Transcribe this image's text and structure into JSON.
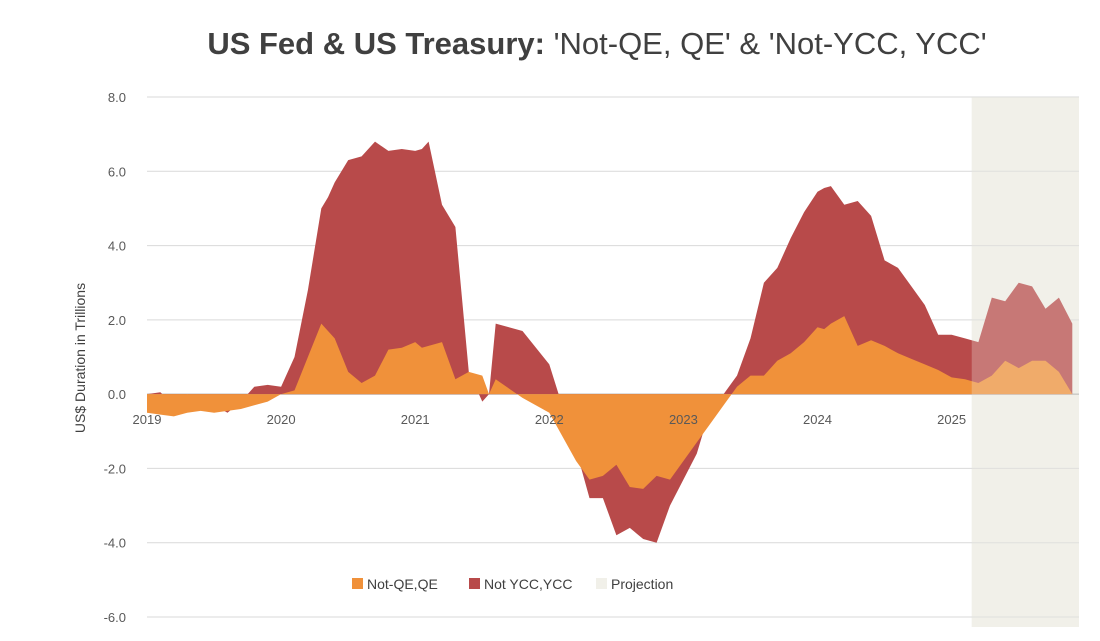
{
  "chart_data": {
    "type": "area",
    "title_bold": "US Fed & US Treasury:",
    "title_rest": " 'Not-QE, QE' & 'Not-YCC, YCC'",
    "ylabel": "US$ Duration in Trillions",
    "xlabel": "",
    "ylim": [
      -6,
      8
    ],
    "yticks": [
      -6,
      -4,
      -2,
      0,
      2,
      4,
      6,
      8
    ],
    "ytick_labels": [
      "-6.0",
      "-4.0",
      "-2.0",
      "0.0",
      "2.0",
      "4.0",
      "6.0",
      "8.0"
    ],
    "xlim": [
      2019.0,
      2025.95
    ],
    "xticks": [
      2019,
      2020,
      2021,
      2022,
      2023,
      2024,
      2025
    ],
    "xtick_labels": [
      "2019",
      "2020",
      "2021",
      "2022",
      "2023",
      "2024",
      "2025"
    ],
    "projection_start": 2025.15,
    "legend_position": "bottom",
    "legend": [
      {
        "name": "Not-QE,QE",
        "color": "#f0913a"
      },
      {
        "name": "Not YCC,YCC",
        "color": "#b84a4a"
      },
      {
        "name": "Projection",
        "color": "#f1f0e9"
      }
    ],
    "series": [
      {
        "name": "Not-QE,QE",
        "x": [
          2019.0,
          2019.1,
          2019.2,
          2019.3,
          2019.4,
          2019.5,
          2019.6,
          2019.7,
          2019.8,
          2019.9,
          2020.0,
          2020.1,
          2020.2,
          2020.3,
          2020.35,
          2020.4,
          2020.5,
          2020.6,
          2020.7,
          2020.8,
          2020.9,
          2021.0,
          2021.05,
          2021.1,
          2021.2,
          2021.3,
          2021.4,
          2021.5,
          2021.55,
          2021.6,
          2021.8,
          2022.0,
          2022.2,
          2022.3,
          2022.4,
          2022.5,
          2022.6,
          2022.7,
          2022.8,
          2022.9,
          2023.0,
          2023.1,
          2023.2,
          2023.3,
          2023.4,
          2023.5,
          2023.6,
          2023.7,
          2023.8,
          2023.9,
          2024.0,
          2024.05,
          2024.1,
          2024.2,
          2024.3,
          2024.4,
          2024.5,
          2024.6,
          2024.7,
          2024.8,
          2024.9,
          2025.0,
          2025.1,
          2025.2,
          2025.3,
          2025.4,
          2025.5,
          2025.6,
          2025.7,
          2025.8,
          2025.9
        ],
        "values": [
          -0.5,
          -0.55,
          -0.6,
          -0.5,
          -0.45,
          -0.5,
          -0.45,
          -0.4,
          -0.3,
          -0.2,
          0.0,
          0.1,
          1.0,
          1.9,
          1.7,
          1.5,
          0.6,
          0.3,
          0.5,
          1.2,
          1.25,
          1.4,
          1.25,
          1.3,
          1.4,
          0.4,
          0.6,
          0.5,
          0.0,
          0.4,
          -0.1,
          -0.5,
          -1.8,
          -2.3,
          -2.2,
          -1.9,
          -2.5,
          -2.55,
          -2.2,
          -2.3,
          -1.8,
          -1.3,
          -0.8,
          -0.3,
          0.2,
          0.5,
          0.5,
          0.9,
          1.1,
          1.4,
          1.8,
          1.75,
          1.9,
          2.1,
          1.3,
          1.45,
          1.3,
          1.1,
          0.95,
          0.8,
          0.65,
          0.45,
          0.4,
          0.3,
          0.5,
          0.9,
          0.7,
          0.9,
          0.9,
          0.6,
          0.0
        ]
      },
      {
        "name": "Not YCC,YCC",
        "x": [
          2019.0,
          2019.1,
          2019.2,
          2019.3,
          2019.4,
          2019.5,
          2019.6,
          2019.7,
          2019.8,
          2019.9,
          2020.0,
          2020.1,
          2020.2,
          2020.3,
          2020.35,
          2020.4,
          2020.5,
          2020.6,
          2020.7,
          2020.8,
          2020.9,
          2021.0,
          2021.05,
          2021.1,
          2021.2,
          2021.3,
          2021.4,
          2021.5,
          2021.55,
          2021.6,
          2021.8,
          2022.0,
          2022.2,
          2022.3,
          2022.4,
          2022.5,
          2022.6,
          2022.7,
          2022.8,
          2022.9,
          2023.0,
          2023.1,
          2023.2,
          2023.3,
          2023.4,
          2023.5,
          2023.6,
          2023.7,
          2023.8,
          2023.9,
          2024.0,
          2024.05,
          2024.1,
          2024.2,
          2024.3,
          2024.4,
          2024.5,
          2024.6,
          2024.7,
          2024.8,
          2024.9,
          2025.0,
          2025.1,
          2025.2,
          2025.3,
          2025.4,
          2025.5,
          2025.6,
          2025.7,
          2025.8,
          2025.9
        ],
        "values": [
          0.0,
          0.05,
          -0.3,
          0.0,
          -0.3,
          -0.3,
          -0.5,
          -0.2,
          0.2,
          0.25,
          0.2,
          1.0,
          2.8,
          5.0,
          5.3,
          5.7,
          6.3,
          6.4,
          6.8,
          6.55,
          6.6,
          6.55,
          6.6,
          6.8,
          5.1,
          4.5,
          0.6,
          -0.2,
          0.0,
          1.9,
          1.7,
          0.8,
          -1.5,
          -2.8,
          -2.8,
          -3.8,
          -3.6,
          -3.9,
          -4.0,
          -3.0,
          -2.3,
          -1.6,
          -0.4,
          0.0,
          0.5,
          1.5,
          3.0,
          3.4,
          4.2,
          4.9,
          5.45,
          5.55,
          5.6,
          5.1,
          5.2,
          4.8,
          3.6,
          3.4,
          2.9,
          2.4,
          1.6,
          1.6,
          1.5,
          1.4,
          2.6,
          2.5,
          3.0,
          2.9,
          2.3,
          2.6,
          1.9
        ]
      }
    ]
  }
}
